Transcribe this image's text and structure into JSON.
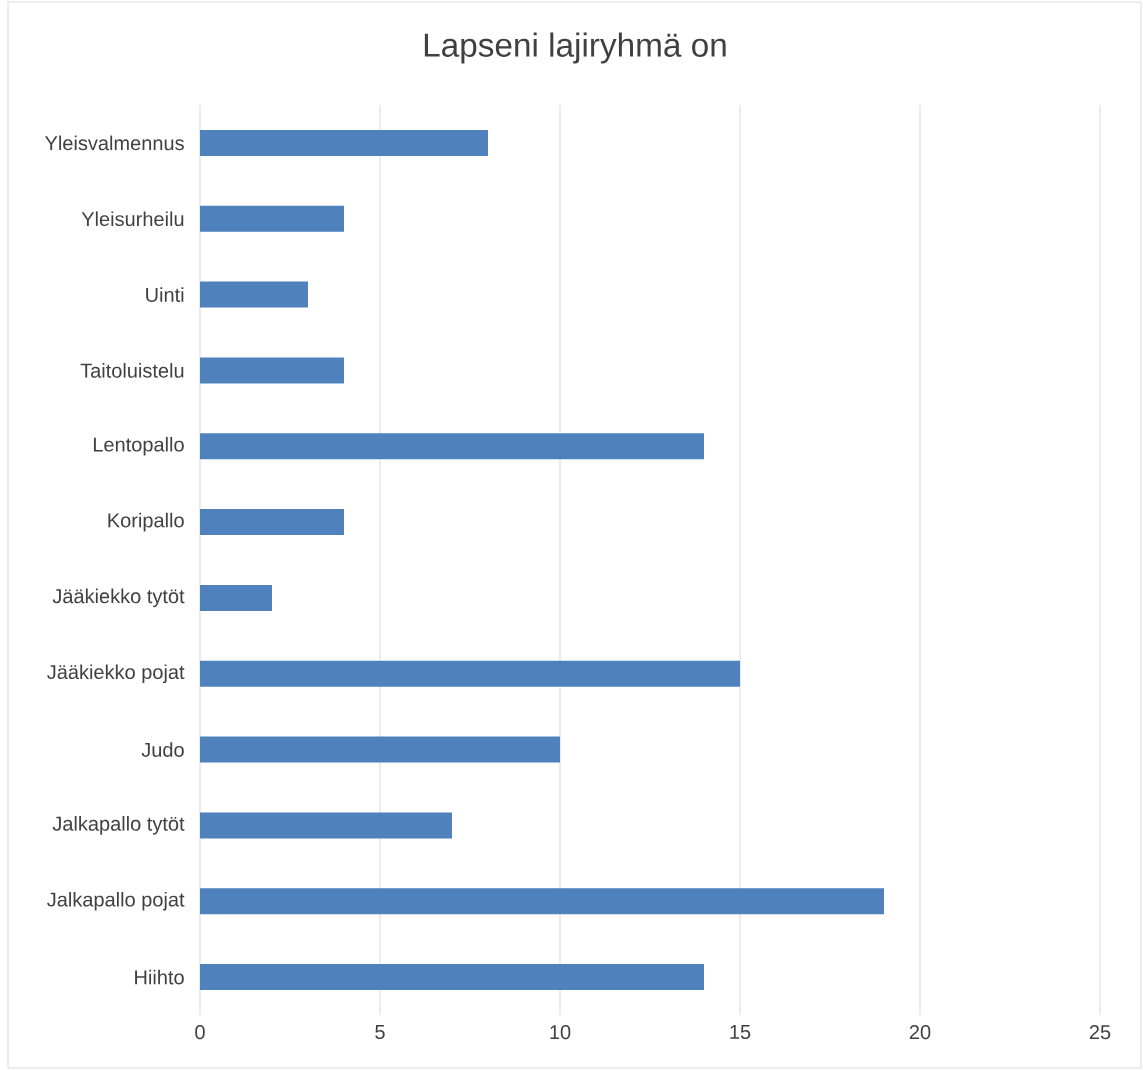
{
  "chart_data": {
    "type": "bar",
    "orientation": "horizontal",
    "title": "Lapseni lajiryhmä on",
    "categories": [
      "Yleisvalmennus",
      "Yleisurheilu",
      "Uinti",
      "Taitoluistelu",
      "Lentopallo",
      "Koripallo",
      "Jääkiekko tytöt",
      "Jääkiekko pojat",
      "Judo",
      "Jalkapallo tytöt",
      "Jalkapallo pojat",
      "Hiihto"
    ],
    "values": [
      8,
      4,
      3,
      4,
      14,
      4,
      2,
      15,
      10,
      7,
      19,
      14
    ],
    "color": "#4f81bd",
    "xlim": [
      0,
      25
    ],
    "xticks": [
      0,
      5,
      10,
      15,
      20,
      25
    ],
    "grid": "x"
  }
}
